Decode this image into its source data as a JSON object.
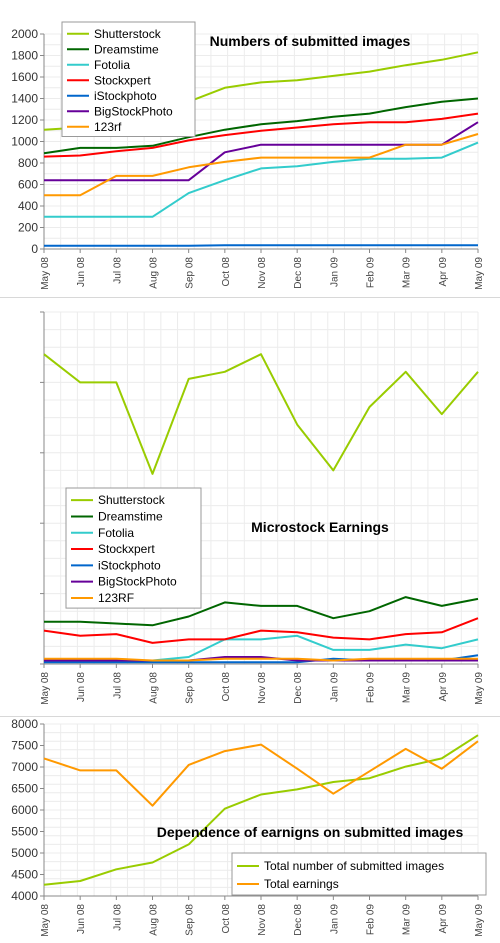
{
  "chart_data": [
    {
      "type": "line",
      "title": "Numbers of submitted images",
      "categories": [
        "May 08",
        "Jun 08",
        "Jul 08",
        "Aug 08",
        "Sep 08",
        "Oct 08",
        "Nov 08",
        "Dec 08",
        "Jan 09",
        "Feb 09",
        "Mar 09",
        "Apr 09",
        "May 09"
      ],
      "ylim": [
        0,
        2000
      ],
      "yticks": [
        "0",
        "200",
        "400",
        "600",
        "800",
        "1000",
        "1200",
        "1400",
        "1600",
        "1800",
        "2000"
      ],
      "grid": true,
      "legend_position": "top-left",
      "series": [
        {
          "name": "Shutterstock",
          "color": "#99cc00",
          "values": [
            1110,
            1130,
            1200,
            1260,
            1370,
            1500,
            1550,
            1570,
            1610,
            1650,
            1710,
            1760,
            1830
          ]
        },
        {
          "name": "Dreamstime",
          "color": "#006600",
          "values": [
            890,
            940,
            940,
            960,
            1040,
            1110,
            1160,
            1190,
            1230,
            1260,
            1320,
            1370,
            1400
          ]
        },
        {
          "name": "Fotolia",
          "color": "#33cccc",
          "values": [
            300,
            300,
            300,
            300,
            520,
            640,
            750,
            770,
            810,
            840,
            840,
            850,
            990
          ]
        },
        {
          "name": "Stockxpert",
          "color": "#ff0000",
          "values": [
            860,
            870,
            910,
            940,
            1010,
            1060,
            1100,
            1130,
            1160,
            1180,
            1180,
            1210,
            1260
          ]
        },
        {
          "name": "iStockphoto",
          "color": "#0066cc",
          "values": [
            30,
            30,
            30,
            30,
            30,
            35,
            35,
            35,
            35,
            35,
            35,
            35,
            35
          ]
        },
        {
          "name": "BigStockPhoto",
          "color": "#660099",
          "values": [
            640,
            640,
            640,
            640,
            640,
            900,
            970,
            970,
            970,
            970,
            970,
            970,
            1180
          ]
        },
        {
          "name": "123rf",
          "color": "#ff9900",
          "values": [
            500,
            500,
            680,
            680,
            760,
            810,
            850,
            850,
            850,
            850,
            970,
            970,
            1070
          ]
        }
      ]
    },
    {
      "type": "line",
      "title": "Microstock Earnings",
      "categories": [
        "May 08",
        "Jun 08",
        "Jul 08",
        "Aug 08",
        "Sep 08",
        "Oct 08",
        "Nov 08",
        "Dec 08",
        "Jan 09",
        "Feb 09",
        "Mar 09",
        "Apr 09",
        "May 09"
      ],
      "ylim": [
        0,
        100
      ],
      "yticks": [],
      "grid": true,
      "legend_position": "bottom-left",
      "series": [
        {
          "name": "Shutterstock",
          "color": "#99cc00",
          "values": [
            88,
            80,
            80,
            54,
            81,
            83,
            88,
            68,
            55,
            73,
            83,
            71,
            83
          ]
        },
        {
          "name": "Dreamstime",
          "color": "#006600",
          "values": [
            12,
            12,
            11.5,
            11,
            13.5,
            17.5,
            16.5,
            16.5,
            13,
            15,
            19,
            16.5,
            18.5
          ]
        },
        {
          "name": "Fotolia",
          "color": "#33cccc",
          "values": [
            1,
            1,
            1,
            1,
            2,
            7,
            7,
            8,
            4,
            4,
            5.5,
            4.5,
            7
          ]
        },
        {
          "name": "Stockxpert",
          "color": "#ff0000",
          "values": [
            9.5,
            8,
            8.5,
            6,
            7,
            7,
            9.5,
            9,
            7.5,
            7,
            8.5,
            9,
            13
          ]
        },
        {
          "name": "iStockphoto",
          "color": "#0066cc",
          "values": [
            0.5,
            0.5,
            0.5,
            0.5,
            0.5,
            0.5,
            0.5,
            0.5,
            1.5,
            1,
            1,
            1,
            2.5
          ]
        },
        {
          "name": "BigStockPhoto",
          "color": "#660099",
          "values": [
            1,
            1,
            1,
            1,
            1,
            2,
            2,
            1,
            1,
            1,
            1,
            1,
            1
          ]
        },
        {
          "name": "123RF",
          "color": "#ff9900",
          "values": [
            1.5,
            1.5,
            1.5,
            1,
            1,
            1.5,
            1.5,
            1.5,
            1,
            1.5,
            1.5,
            1.5,
            1.5
          ]
        }
      ]
    },
    {
      "type": "line",
      "title": "Dependence of earnigns on submitted images",
      "categories": [
        "May 08",
        "Jun 08",
        "Jul 08",
        "Aug 08",
        "Sep 08",
        "Oct 08",
        "Nov 08",
        "Dec 08",
        "Jan 09",
        "Feb 09",
        "Mar 09",
        "Apr 09",
        "May 09"
      ],
      "ylim": [
        4000,
        8000
      ],
      "yticks": [
        "4000",
        "4500",
        "5000",
        "5500",
        "6000",
        "6500",
        "7000",
        "7500",
        "8000"
      ],
      "grid": true,
      "legend_position": "bottom-right",
      "series": [
        {
          "name": "Total number of submitted images",
          "color": "#99cc00",
          "values": [
            4260,
            4350,
            4620,
            4780,
            5200,
            6030,
            6360,
            6480,
            6650,
            6740,
            7010,
            7200,
            7740
          ]
        },
        {
          "name": "Total earnings",
          "color": "#ff9900",
          "values": [
            7200,
            6920,
            6920,
            6100,
            7050,
            7370,
            7520,
            6960,
            6380,
            6900,
            7420,
            6960,
            7600
          ]
        }
      ]
    }
  ]
}
